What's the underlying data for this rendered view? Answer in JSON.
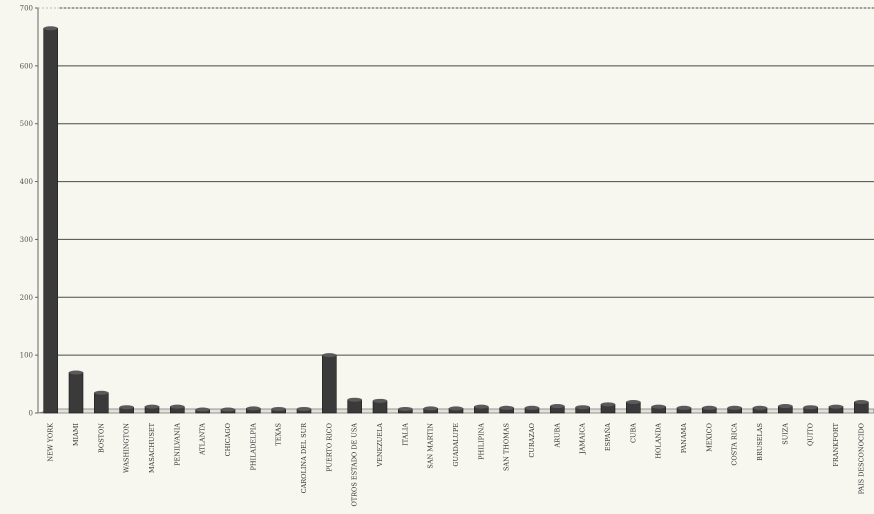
{
  "chart_data": {
    "type": "bar",
    "title": "",
    "xlabel": "",
    "ylabel": "",
    "ylim": [
      0,
      700
    ],
    "yticks": [
      0,
      100,
      200,
      300,
      400,
      500,
      600,
      700
    ],
    "grid": true,
    "bar_color": "#3a3a3a",
    "grid_color": "#4a4a4a",
    "categories": [
      "NEW YORK",
      "MIAMI",
      "BOSTON",
      "WASHINGTON",
      "MASACHUSET",
      "PENILVANIA",
      "ATLANTA",
      "CHICAGO",
      "PHILADELPIA",
      "TEXAS",
      "CAROLINA DEL SUR",
      "PUERTO RICO",
      "OTROS ESTADO DE USA",
      "VENEZUELA",
      "ITALIA",
      "SAN MARTIN",
      "GUADALUPE",
      "PHILIPINA",
      "SAN THOMAS",
      "CURAZAO",
      "ARUBA",
      "JAMAICA",
      "ESPAÑA",
      "CUBA",
      "HOLANDA",
      "PANAMA",
      "MEXICO",
      "COSTA RICA",
      "BRUSELAS",
      "SUIZA",
      "QUITO",
      "FRANKFORT",
      "PAIS DESCONOCIDO"
    ],
    "values": [
      665,
      70,
      35,
      10,
      11,
      11,
      6,
      6,
      8,
      7,
      7,
      100,
      23,
      21,
      7,
      8,
      8,
      11,
      9,
      9,
      12,
      10,
      15,
      19,
      11,
      9,
      9,
      9,
      9,
      12,
      10,
      11,
      19
    ]
  }
}
